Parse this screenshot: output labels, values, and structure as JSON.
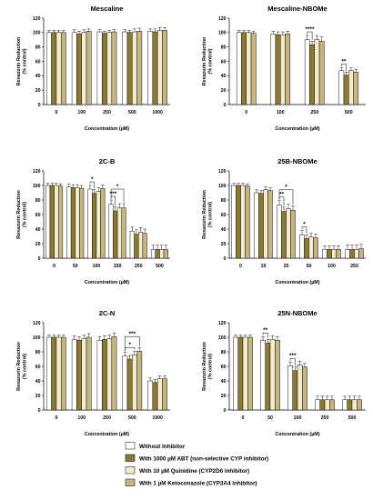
{
  "legend": [
    {
      "label": "Without Inhibitor",
      "color": "#ffffff"
    },
    {
      "label": "With 1000 µM ABT (non-selective CYP inhibitor)",
      "color": "#8a7a35"
    },
    {
      "label": "With 10 µM Quinidine (CYP2D6 inhibitor)",
      "color": "#f3eccb"
    },
    {
      "label": "With 1 µM Ketoconazole (CYP3A4 inhibitor)",
      "color": "#c4b582"
    }
  ],
  "chart_data": [
    {
      "type": "bar",
      "title": "Mescaline",
      "xlabel": "Concentration (µM)",
      "ylabel": [
        "Resazurin Reduction",
        "(% control)"
      ],
      "ylim": [
        0,
        120
      ],
      "yticks": [
        0,
        20,
        40,
        60,
        80,
        100,
        120
      ],
      "categories": [
        "0",
        "100",
        "250",
        "500",
        "1000"
      ],
      "series": [
        {
          "name": "Without Inhibitor",
          "values": [
            100,
            100,
            101,
            101,
            102
          ],
          "errors": [
            3,
            4,
            3,
            3,
            3
          ]
        },
        {
          "name": "With 1000 µM ABT (non-selective CYP inhibitor)",
          "values": [
            100,
            98,
            99,
            100,
            101
          ],
          "errors": [
            3,
            4,
            3,
            3,
            4
          ]
        },
        {
          "name": "With 10 µM Quinidine (CYP2D6 inhibitor)",
          "values": [
            100,
            100,
            100,
            101,
            103
          ],
          "errors": [
            3,
            4,
            3,
            4,
            4
          ]
        },
        {
          "name": "With 1 µM Ketoconazole (CYP3A4 inhibitor)",
          "values": [
            100,
            102,
            101,
            102,
            103
          ],
          "errors": [
            3,
            3,
            3,
            4,
            4
          ]
        }
      ],
      "annotations": []
    },
    {
      "type": "bar",
      "title": "Mescaline-NBOMe",
      "xlabel": "Concentration (µM)",
      "ylabel": [
        "Resazurin Reduction",
        "(% control)"
      ],
      "ylim": [
        0,
        120
      ],
      "yticks": [
        0,
        20,
        40,
        60,
        80,
        100,
        120
      ],
      "categories": [
        "0",
        "100",
        "250",
        "500"
      ],
      "series": [
        {
          "name": "Without Inhibitor",
          "values": [
            100,
            98,
            90,
            47
          ],
          "errors": [
            3,
            4,
            6,
            4
          ]
        },
        {
          "name": "With 1000 µM ABT (non-selective CYP inhibitor)",
          "values": [
            100,
            97,
            83,
            41
          ],
          "errors": [
            3,
            4,
            5,
            4
          ]
        },
        {
          "name": "With 10 µM Quinidine (CYP2D6 inhibitor)",
          "values": [
            100,
            97,
            90,
            47
          ],
          "errors": [
            3,
            4,
            6,
            4
          ]
        },
        {
          "name": "With 1 µM Ketoconazole (CYP3A4 inhibitor)",
          "values": [
            99,
            98,
            88,
            45
          ],
          "errors": [
            3,
            4,
            6,
            4
          ]
        }
      ],
      "annotations": [
        {
          "category": "250",
          "from": 0,
          "to": 1,
          "text": "****"
        },
        {
          "category": "500",
          "from": 0,
          "to": 1,
          "text": "**"
        }
      ]
    },
    {
      "type": "bar",
      "title": "2C-B",
      "xlabel": "Concentration (µM)",
      "ylabel": [
        "Resazurin Reduction",
        "(% control)"
      ],
      "ylim": [
        0,
        120
      ],
      "yticks": [
        0,
        20,
        40,
        60,
        80,
        100,
        120
      ],
      "categories": [
        "0",
        "50",
        "100",
        "150",
        "250",
        "500"
      ],
      "series": [
        {
          "name": "Without Inhibitor",
          "values": [
            100,
            98,
            95,
            74,
            37,
            12
          ],
          "errors": [
            3,
            4,
            5,
            6,
            6,
            6
          ]
        },
        {
          "name": "With 1000 µM ABT (non-selective CYP inhibitor)",
          "values": [
            100,
            97,
            89,
            65,
            33,
            12
          ],
          "errors": [
            3,
            4,
            5,
            6,
            6,
            6
          ]
        },
        {
          "name": "With 10 µM Quinidine (CYP2D6 inhibitor)",
          "values": [
            100,
            97,
            92,
            69,
            36,
            12
          ],
          "errors": [
            3,
            4,
            5,
            6,
            6,
            6
          ]
        },
        {
          "name": "With 1 µM Ketoconazole (CYP3A4 inhibitor)",
          "values": [
            99,
            96,
            96,
            69,
            34,
            12
          ],
          "errors": [
            3,
            4,
            5,
            6,
            6,
            6
          ]
        }
      ],
      "annotations": [
        {
          "category": "100",
          "from": 0,
          "to": 1,
          "text": "*"
        },
        {
          "category": "150",
          "from": 0,
          "to": 1,
          "text": "***"
        },
        {
          "category": "150",
          "from": 0,
          "to": 3,
          "text": "*"
        }
      ]
    },
    {
      "type": "bar",
      "title": "25B-NBOMe",
      "xlabel": "Concentration (µM)",
      "ylabel": [
        "Resazurin Reduction",
        "(% control)"
      ],
      "ylim": [
        0,
        120
      ],
      "yticks": [
        0,
        20,
        40,
        60,
        80,
        100,
        120
      ],
      "categories": [
        "0",
        "10",
        "25",
        "50",
        "100",
        "250"
      ],
      "series": [
        {
          "name": "Without Inhibitor",
          "values": [
            100,
            90,
            73,
            32,
            12,
            12
          ],
          "errors": [
            3,
            4,
            6,
            6,
            5,
            6
          ]
        },
        {
          "name": "With 1000 µM ABT (non-selective CYP inhibitor)",
          "values": [
            100,
            89,
            64,
            27,
            12,
            12
          ],
          "errors": [
            3,
            4,
            6,
            5,
            5,
            6
          ]
        },
        {
          "name": "With 10 µM Quinidine (CYP2D6 inhibitor)",
          "values": [
            100,
            94,
            68,
            29,
            12,
            12
          ],
          "errors": [
            3,
            4,
            6,
            5,
            5,
            6
          ]
        },
        {
          "name": "With 1 µM Ketoconazole (CYP3A4 inhibitor)",
          "values": [
            99,
            93,
            66,
            28,
            12,
            13
          ],
          "errors": [
            3,
            4,
            6,
            5,
            5,
            6
          ]
        }
      ],
      "annotations": [
        {
          "category": "25",
          "from": 0,
          "to": 1,
          "text": "**"
        },
        {
          "category": "25",
          "from": 0,
          "to": 3,
          "text": "*"
        },
        {
          "category": "50",
          "from": 0,
          "to": 1,
          "text": "*"
        }
      ]
    },
    {
      "type": "bar",
      "title": "2C-N",
      "xlabel": "Concentration (µM)",
      "ylabel": [
        "Resazurin Reduction",
        "(% control)"
      ],
      "ylim": [
        0,
        120
      ],
      "yticks": [
        0,
        20,
        40,
        60,
        80,
        100,
        120
      ],
      "categories": [
        "0",
        "100",
        "250",
        "500",
        "1000"
      ],
      "series": [
        {
          "name": "Without Inhibitor",
          "values": [
            100,
            97,
            96,
            74,
            40
          ],
          "errors": [
            3,
            5,
            5,
            5,
            4
          ]
        },
        {
          "name": "With 1000 µM ABT (non-selective CYP inhibitor)",
          "values": [
            100,
            96,
            97,
            70,
            38
          ],
          "errors": [
            3,
            5,
            5,
            5,
            4
          ]
        },
        {
          "name": "With 10 µM Quinidine (CYP2D6 inhibitor)",
          "values": [
            100,
            98,
            98,
            76,
            43
          ],
          "errors": [
            3,
            5,
            5,
            5,
            4
          ]
        },
        {
          "name": "With 1 µM Ketoconazole (CYP3A4 inhibitor)",
          "values": [
            100,
            100,
            101,
            81,
            43
          ],
          "errors": [
            3,
            5,
            5,
            5,
            4
          ]
        }
      ],
      "annotations": [
        {
          "category": "500",
          "from": 0,
          "to": 2,
          "text": "*"
        },
        {
          "category": "500",
          "from": 0,
          "to": 3,
          "text": "***"
        }
      ]
    },
    {
      "type": "bar",
      "title": "25N-NBOMe",
      "xlabel": "Concentration (µM)",
      "ylabel": [
        "Resazurin Reduction",
        "(% control)"
      ],
      "ylim": [
        0,
        120
      ],
      "yticks": [
        0,
        20,
        40,
        60,
        80,
        100,
        120
      ],
      "categories": [
        "0",
        "50",
        "100",
        "250",
        "500"
      ],
      "series": [
        {
          "name": "Without Inhibitor",
          "values": [
            100,
            96,
            61,
            14,
            14
          ],
          "errors": [
            3,
            5,
            5,
            5,
            5
          ]
        },
        {
          "name": "With 1000 µM ABT (non-selective CYP inhibitor)",
          "values": [
            100,
            92,
            54,
            14,
            14
          ],
          "errors": [
            3,
            5,
            5,
            5,
            5
          ]
        },
        {
          "name": "With 10 µM Quinidine (CYP2D6 inhibitor)",
          "values": [
            100,
            97,
            62,
            14,
            14
          ],
          "errors": [
            3,
            5,
            5,
            5,
            5
          ]
        },
        {
          "name": "With 1 µM Ketoconazole (CYP3A4 inhibitor)",
          "values": [
            100,
            96,
            59,
            14,
            14
          ],
          "errors": [
            3,
            5,
            5,
            5,
            5
          ]
        }
      ],
      "annotations": [
        {
          "category": "50",
          "from": 0,
          "to": 1,
          "text": "**"
        },
        {
          "category": "100",
          "from": 0,
          "to": 1,
          "text": "***"
        }
      ]
    }
  ]
}
